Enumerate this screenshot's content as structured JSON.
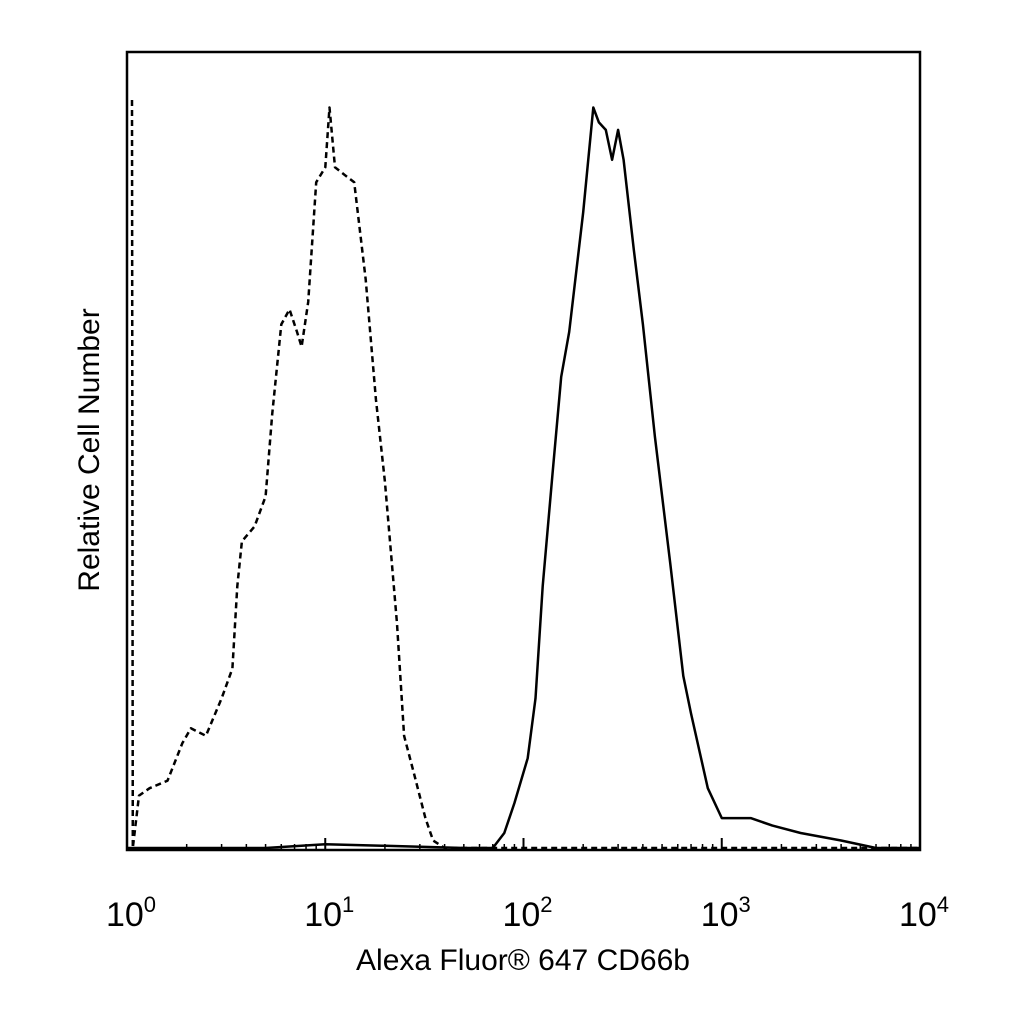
{
  "chart_data": {
    "type": "line",
    "title": "",
    "xlabel": "Alexa Fluor® 647 CD66b",
    "ylabel": "Relative Cell Number",
    "xscale": "log",
    "xlim": [
      1,
      10000
    ],
    "ylim": [
      0,
      100
    ],
    "grid": false,
    "legend": "none",
    "x_ticks": [
      {
        "value": 1,
        "base": "10",
        "exp": "0"
      },
      {
        "value": 10,
        "base": "10",
        "exp": "1"
      },
      {
        "value": 100,
        "base": "10",
        "exp": "2"
      },
      {
        "value": 1000,
        "base": "10",
        "exp": "3"
      },
      {
        "value": 10000,
        "base": "10",
        "exp": "4"
      }
    ],
    "series": [
      {
        "style": "dashed",
        "color": "#000000",
        "points": [
          [
            1.06,
            100
          ],
          [
            1.07,
            0
          ],
          [
            1.15,
            7
          ],
          [
            1.3,
            8
          ],
          [
            1.6,
            9
          ],
          [
            1.9,
            14
          ],
          [
            2.1,
            16
          ],
          [
            2.5,
            15
          ],
          [
            3.0,
            20
          ],
          [
            3.4,
            24
          ],
          [
            3.6,
            35
          ],
          [
            3.8,
            41
          ],
          [
            4.4,
            43
          ],
          [
            5.0,
            47
          ],
          [
            5.4,
            58
          ],
          [
            6.0,
            70
          ],
          [
            6.6,
            72
          ],
          [
            7.2,
            69
          ],
          [
            7.6,
            67
          ],
          [
            8.2,
            73
          ],
          [
            9.0,
            89
          ],
          [
            10.0,
            91
          ],
          [
            10.5,
            99
          ],
          [
            11.2,
            91
          ],
          [
            12.5,
            90
          ],
          [
            14.0,
            89
          ],
          [
            16.0,
            76
          ],
          [
            18.0,
            60
          ],
          [
            20.0,
            49
          ],
          [
            23.0,
            30
          ],
          [
            25.0,
            15
          ],
          [
            28.0,
            10
          ],
          [
            32.0,
            4
          ],
          [
            35.0,
            1
          ],
          [
            40.0,
            0
          ],
          [
            100,
            0
          ],
          [
            1000,
            0
          ],
          [
            10000,
            0
          ]
        ]
      },
      {
        "style": "solid",
        "color": "#000000",
        "points": [
          [
            1,
            0
          ],
          [
            5,
            0
          ],
          [
            10,
            0.5
          ],
          [
            20,
            0.3
          ],
          [
            50,
            0
          ],
          [
            70,
            0
          ],
          [
            80,
            2
          ],
          [
            90,
            6
          ],
          [
            105,
            12
          ],
          [
            115,
            20
          ],
          [
            125,
            35
          ],
          [
            140,
            50
          ],
          [
            155,
            63
          ],
          [
            170,
            69
          ],
          [
            200,
            85
          ],
          [
            225,
            99
          ],
          [
            240,
            97
          ],
          [
            260,
            96
          ],
          [
            280,
            92
          ],
          [
            300,
            96
          ],
          [
            320,
            92
          ],
          [
            360,
            80
          ],
          [
            400,
            70
          ],
          [
            460,
            55
          ],
          [
            550,
            38
          ],
          [
            640,
            23
          ],
          [
            700,
            18
          ],
          [
            850,
            8
          ],
          [
            1000,
            4
          ],
          [
            1400,
            4
          ],
          [
            1800,
            3
          ],
          [
            2500,
            2
          ],
          [
            4000,
            1
          ],
          [
            6000,
            0
          ],
          [
            10000,
            0
          ]
        ]
      }
    ]
  }
}
